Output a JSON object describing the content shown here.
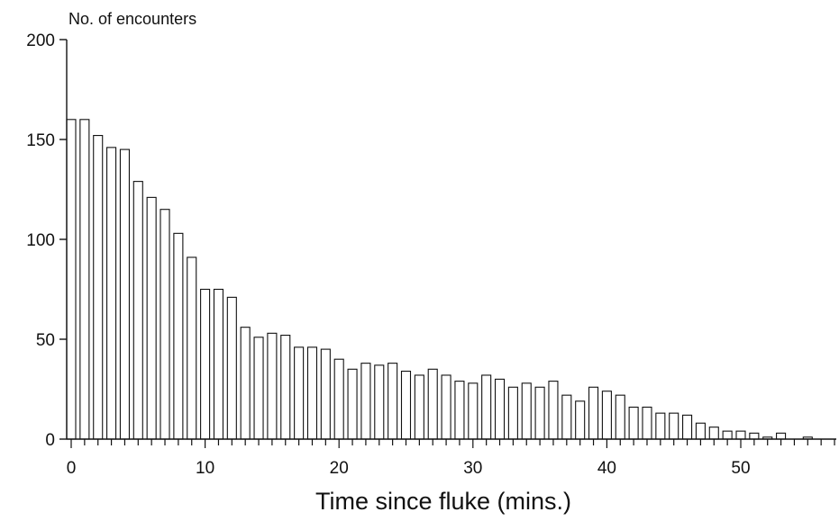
{
  "chart_data": {
    "type": "bar",
    "title": "",
    "ylabel": "No. of encounters",
    "xlabel": "Time since fluke (mins.)",
    "xlim": [
      0,
      59
    ],
    "ylim": [
      0,
      200
    ],
    "x_ticks": [
      0,
      10,
      20,
      30,
      40,
      50
    ],
    "y_ticks": [
      0,
      50,
      100,
      150,
      200
    ],
    "x_tick_labels": [
      "0",
      "10",
      "20",
      "30",
      "40",
      "50"
    ],
    "y_tick_labels": [
      "0",
      "50",
      "100",
      "150",
      "200"
    ],
    "grid": false,
    "x": [
      0,
      1,
      2,
      3,
      4,
      5,
      6,
      7,
      8,
      9,
      10,
      11,
      12,
      13,
      14,
      15,
      16,
      17,
      18,
      19,
      20,
      21,
      22,
      23,
      24,
      25,
      26,
      27,
      28,
      29,
      30,
      31,
      32,
      33,
      34,
      35,
      36,
      37,
      38,
      39,
      40,
      41,
      42,
      43,
      44,
      45,
      46,
      47,
      48,
      49,
      50,
      51,
      52,
      53,
      54,
      55,
      56,
      57,
      58
    ],
    "values": [
      160,
      160,
      152,
      146,
      145,
      129,
      121,
      115,
      103,
      91,
      75,
      75,
      71,
      56,
      51,
      53,
      52,
      46,
      46,
      45,
      40,
      35,
      38,
      37,
      38,
      34,
      32,
      35,
      32,
      29,
      28,
      32,
      30,
      26,
      28,
      26,
      29,
      22,
      19,
      26,
      24,
      22,
      16,
      16,
      13,
      13,
      12,
      8,
      6,
      4,
      4,
      3,
      1,
      3,
      0,
      1,
      0,
      0,
      1
    ]
  }
}
